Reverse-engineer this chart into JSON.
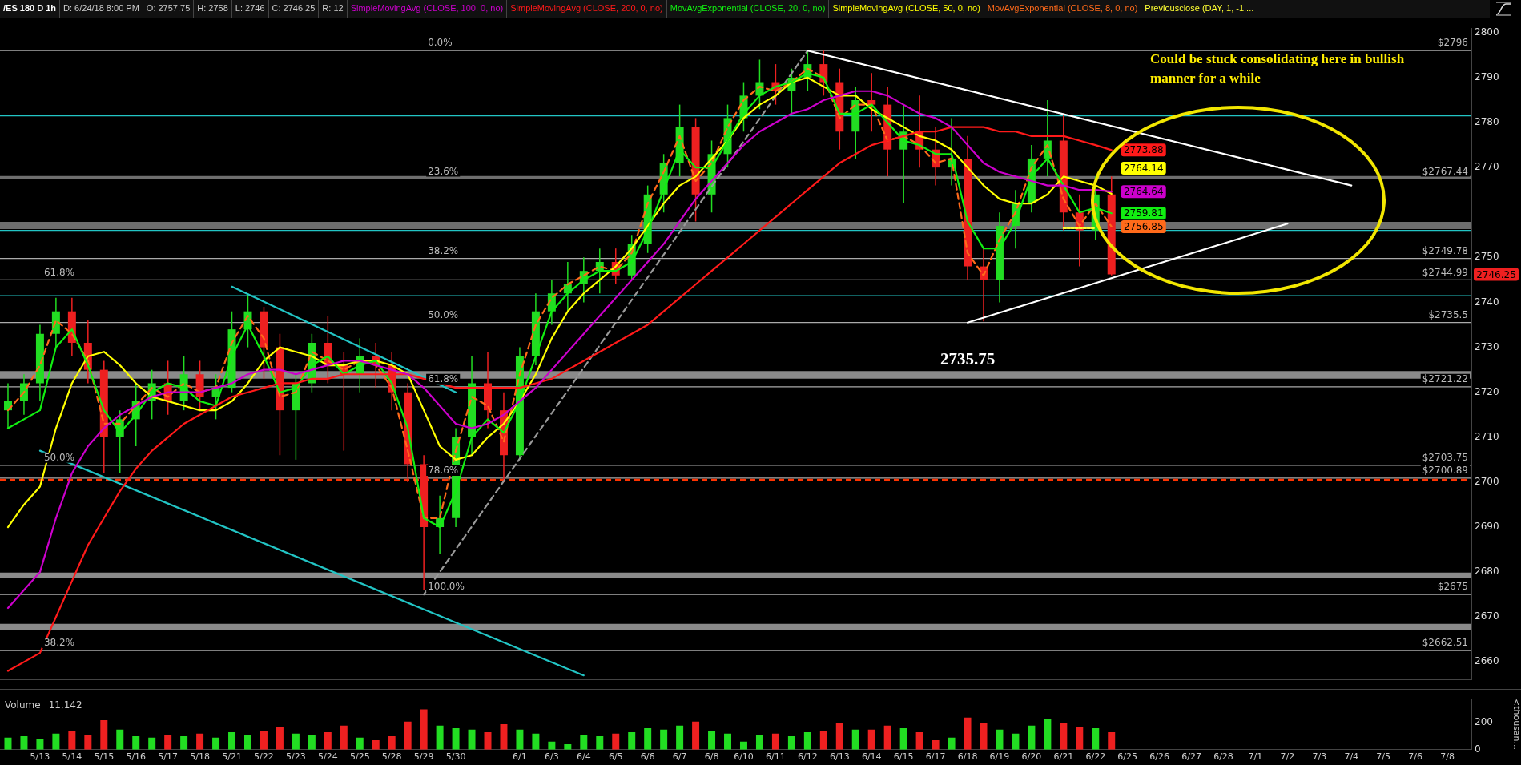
{
  "chart_data": [
    {
      "type": "candlestick",
      "title": "/ES 180 D 1h",
      "categories": [
        null,
        null,
        "5/13",
        null,
        "5/14",
        null,
        "5/15",
        null,
        "5/16",
        null,
        "5/17",
        null,
        "5/18",
        null,
        "5/21",
        null,
        "5/22",
        null,
        "5/23",
        null,
        "5/24",
        null,
        "5/25",
        null,
        "5/28",
        null,
        "5/29",
        null,
        "5/30",
        null,
        null,
        null,
        "6/1",
        null,
        "6/3",
        null,
        "6/4",
        null,
        "6/5",
        null,
        "6/6",
        null,
        "6/7",
        null,
        "6/8",
        null,
        "6/10",
        null,
        "6/11",
        null,
        "6/12",
        null,
        "6/13",
        null,
        "6/14",
        null,
        "6/15",
        null,
        "6/17",
        null,
        "6/18",
        null,
        "6/19",
        null,
        "6/20",
        null,
        "6/21",
        null,
        "6/22",
        null,
        "6/25",
        null,
        "6/26",
        null,
        "6/27",
        null,
        "6/28",
        null,
        "7/1",
        null,
        "7/2",
        null,
        "7/3",
        null,
        "7/4",
        null,
        "7/5",
        null,
        "7/6",
        null,
        "7/8",
        null
      ],
      "ohlc": [
        [
          2716,
          2722,
          2712,
          2718
        ],
        [
          2718,
          2724,
          2715,
          2722
        ],
        [
          2722,
          2735,
          2718,
          2733
        ],
        [
          2733,
          2741,
          2730,
          2738
        ],
        [
          2738,
          2741,
          2728,
          2731
        ],
        [
          2731,
          2736,
          2722,
          2725
        ],
        [
          2725,
          2727,
          2702,
          2710
        ],
        [
          2710,
          2716,
          2702,
          2714
        ],
        [
          2714,
          2722,
          2708,
          2718
        ],
        [
          2718,
          2725,
          2714,
          2722
        ],
        [
          2722,
          2727,
          2715,
          2718
        ],
        [
          2718,
          2728,
          2716,
          2724
        ],
        [
          2724,
          2727,
          2716,
          2719
        ],
        [
          2719,
          2724,
          2714,
          2721
        ],
        [
          2721,
          2738,
          2720,
          2734
        ],
        [
          2734,
          2742,
          2730,
          2738
        ],
        [
          2738,
          2739,
          2723,
          2730
        ],
        [
          2730,
          2733,
          2706,
          2716
        ],
        [
          2716,
          2724,
          2705,
          2722
        ],
        [
          2722,
          2733,
          2720,
          2731
        ],
        [
          2731,
          2737,
          2722,
          2726
        ],
        [
          2726,
          2729,
          2707,
          2724
        ],
        [
          2724,
          2732,
          2720,
          2728
        ],
        [
          2728,
          2731,
          2721,
          2726
        ],
        [
          2726,
          2729,
          2716,
          2720
        ],
        [
          2720,
          2722,
          2700,
          2704
        ],
        [
          2704,
          2706,
          2676,
          2690
        ],
        [
          2690,
          2697,
          2684,
          2692
        ],
        [
          2692,
          2712,
          2690,
          2710
        ],
        [
          2710,
          2728,
          2706,
          2722
        ],
        [
          2722,
          2729,
          2712,
          2716
        ],
        [
          2716,
          2720,
          2700,
          2706
        ],
        [
          2706,
          2730,
          2705,
          2728
        ],
        [
          2728,
          2742,
          2726,
          2738
        ],
        [
          2738,
          2745,
          2735,
          2742
        ],
        [
          2742,
          2749,
          2738,
          2744
        ],
        [
          2744,
          2750,
          2740,
          2747
        ],
        [
          2747,
          2752,
          2742,
          2749
        ],
        [
          2749,
          2752,
          2744,
          2746
        ],
        [
          2746,
          2755,
          2745,
          2753
        ],
        [
          2753,
          2766,
          2751,
          2764
        ],
        [
          2764,
          2773,
          2760,
          2771
        ],
        [
          2771,
          2784,
          2768,
          2779
        ],
        [
          2779,
          2781,
          2758,
          2764
        ],
        [
          2764,
          2776,
          2760,
          2773
        ],
        [
          2773,
          2784,
          2770,
          2781
        ],
        [
          2781,
          2789,
          2778,
          2786
        ],
        [
          2786,
          2794,
          2783,
          2789
        ],
        [
          2789,
          2793,
          2784,
          2787
        ],
        [
          2787,
          2792,
          2782,
          2790
        ],
        [
          2790,
          2796,
          2787,
          2793
        ],
        [
          2793,
          2796,
          2786,
          2789
        ],
        [
          2789,
          2792,
          2774,
          2778
        ],
        [
          2778,
          2788,
          2772,
          2785
        ],
        [
          2785,
          2791,
          2778,
          2784
        ],
        [
          2784,
          2788,
          2768,
          2774
        ],
        [
          2774,
          2784,
          2762,
          2778
        ],
        [
          2778,
          2786,
          2770,
          2774
        ],
        [
          2774,
          2779,
          2766,
          2770
        ],
        [
          2770,
          2781,
          2766,
          2772
        ],
        [
          2772,
          2777,
          2745,
          2748
        ],
        [
          2748,
          2752,
          2735.75,
          2745
        ],
        [
          2745,
          2760,
          2740,
          2757
        ],
        [
          2757,
          2765,
          2752,
          2762
        ],
        [
          2762,
          2775,
          2760,
          2772
        ],
        [
          2772,
          2785,
          2768,
          2776
        ],
        [
          2776,
          2782,
          2756,
          2760
        ],
        [
          2760,
          2764,
          2748,
          2756
        ],
        [
          2756,
          2768,
          2754,
          2764
        ],
        [
          2764,
          2768,
          2746,
          2746.25
        ],
        null,
        null,
        null,
        null,
        null,
        null,
        null,
        null,
        null,
        null,
        null,
        null,
        null,
        null,
        null,
        null,
        null,
        null,
        null,
        null,
        null,
        null
      ],
      "colors": [
        "#22dd22",
        "#22dd22",
        "#22dd22",
        "#22dd22",
        "#ee2020",
        "#ee2020",
        "#ee2020",
        "#22dd22",
        "#22dd22",
        "#22dd22",
        "#ee2020",
        "#22dd22",
        "#ee2020",
        "#22dd22",
        "#22dd22",
        "#22dd22",
        "#ee2020",
        "#ee2020",
        "#22dd22",
        "#22dd22",
        "#ee2020",
        "#ee2020",
        "#22dd22",
        "#ee2020",
        "#ee2020",
        "#ee2020",
        "#ee2020",
        "#22dd22",
        "#22dd22",
        "#22dd22",
        "#ee2020",
        "#ee2020",
        "#22dd22",
        "#22dd22",
        "#22dd22",
        "#22dd22",
        "#22dd22",
        "#22dd22",
        "#ee2020",
        "#22dd22",
        "#22dd22",
        "#22dd22",
        "#22dd22",
        "#ee2020",
        "#22dd22",
        "#22dd22",
        "#22dd22",
        "#22dd22",
        "#ee2020",
        "#22dd22",
        "#22dd22",
        "#ee2020",
        "#ee2020",
        "#22dd22",
        "#ee2020",
        "#ee2020",
        "#22dd22",
        "#ee2020",
        "#ee2020",
        "#22dd22",
        "#ee2020",
        "#ee2020",
        "#22dd22",
        "#22dd22",
        "#22dd22",
        "#22dd22",
        "#ee2020",
        "#ee2020",
        "#22dd22",
        "#ee2020",
        null,
        null,
        null,
        null,
        null,
        null,
        null,
        null,
        null,
        null,
        null,
        null,
        null,
        null,
        null,
        null,
        null,
        null,
        null,
        null,
        null,
        null
      ],
      "series": [
        {
          "name": "SimpleMovingAvg (CLOSE, 100, 0, no)",
          "type": "line",
          "color": "#cc00cc",
          "values": [
            2672,
            2676,
            2680,
            2692,
            2702,
            2708,
            2712,
            2715,
            2717,
            2719,
            2720,
            2720,
            2720,
            2721,
            2722,
            2724,
            2725,
            2725,
            2724,
            2725,
            2726,
            2727,
            2727,
            2726,
            2725,
            2724,
            2721,
            2717,
            2713,
            2712,
            2713,
            2715,
            2718,
            2721,
            2725,
            2729,
            2733,
            2737,
            2741,
            2745,
            2749,
            2753,
            2758,
            2763,
            2767,
            2771,
            2775,
            2778,
            2780,
            2782,
            2783,
            2785,
            2786,
            2787,
            2787,
            2786,
            2784,
            2782,
            2781,
            2779,
            2775,
            2771,
            2769,
            2768,
            2767,
            2766,
            2766,
            2765,
            2765,
            2764.64,
            null,
            null,
            null,
            null,
            null,
            null,
            null,
            null,
            null,
            null,
            null,
            null,
            null,
            null,
            null,
            null,
            null,
            null,
            null,
            null,
            null,
            null
          ],
          "value_labels": [
            null,
            null,
            null,
            null,
            null,
            null,
            null,
            null,
            null,
            null,
            null,
            null,
            null,
            null,
            null,
            null,
            null,
            null,
            null,
            null,
            null,
            null,
            null,
            null,
            null,
            null,
            null,
            null,
            null,
            null,
            null,
            null,
            null,
            null,
            null,
            null,
            null,
            null,
            null,
            null,
            null,
            null,
            null,
            null,
            null,
            null,
            null,
            null,
            null,
            null,
            null,
            null,
            null,
            null,
            null,
            null,
            null,
            null,
            null,
            null,
            null,
            null,
            null,
            null,
            null,
            null,
            null,
            null,
            null,
            "2764.64",
            null,
            null,
            null,
            null,
            null,
            null,
            null,
            null,
            null,
            null,
            null,
            null,
            null,
            null,
            null,
            null,
            null,
            null,
            null,
            null,
            null,
            null
          ]
        },
        {
          "name": "SimpleMovingAvg (CLOSE, 200, 0, no)",
          "type": "line",
          "color": "#ff1a1a",
          "values": [
            2658,
            2660,
            2662,
            2670,
            2678,
            2686,
            2692,
            2698,
            2703,
            2707,
            2710,
            2713,
            2715,
            2717,
            2719,
            2720,
            2721,
            2722,
            2722,
            2723,
            2723,
            2724,
            2724,
            2724,
            2724,
            2724,
            2723,
            2722,
            2721,
            2721,
            2721,
            2721,
            2721,
            2722,
            2723,
            2725,
            2727,
            2729,
            2731,
            2733,
            2735,
            2738,
            2741,
            2744,
            2747,
            2750,
            2753,
            2756,
            2759,
            2762,
            2765,
            2768,
            2771,
            2773,
            2775,
            2776,
            2777,
            2778,
            2778,
            2779,
            2779,
            2779,
            2778,
            2778,
            2777,
            2777,
            2777,
            2776,
            2775,
            2773.88,
            null,
            null,
            null,
            null,
            null,
            null,
            null,
            null,
            null,
            null,
            null,
            null,
            null,
            null,
            null,
            null,
            null,
            null,
            null,
            null,
            null,
            null
          ],
          "value_labels": [
            null,
            null,
            null,
            null,
            null,
            null,
            null,
            null,
            null,
            null,
            null,
            null,
            null,
            null,
            null,
            null,
            null,
            null,
            null,
            null,
            null,
            null,
            null,
            null,
            null,
            null,
            null,
            null,
            null,
            null,
            null,
            null,
            null,
            null,
            null,
            null,
            null,
            null,
            null,
            null,
            null,
            null,
            null,
            null,
            null,
            null,
            null,
            null,
            null,
            null,
            null,
            null,
            null,
            null,
            null,
            null,
            null,
            null,
            null,
            null,
            null,
            null,
            null,
            null,
            null,
            null,
            null,
            null,
            null,
            "2773.88",
            null,
            null,
            null,
            null,
            null,
            null,
            null,
            null,
            null,
            null,
            null,
            null,
            null,
            null,
            null,
            null,
            null,
            null,
            null,
            null,
            null,
            null
          ]
        },
        {
          "name": "MovAvgExponential (CLOSE, 20, 0, no)",
          "type": "line",
          "color": "#11ee11",
          "values": [
            2712,
            2714,
            2716,
            2730,
            2734,
            2726,
            2716,
            2711,
            2715,
            2720,
            2722,
            2721,
            2718,
            2717,
            2728,
            2735,
            2728,
            2720,
            2721,
            2726,
            2728,
            2724,
            2726,
            2727,
            2722,
            2712,
            2692,
            2690,
            2698,
            2710,
            2714,
            2711,
            2718,
            2728,
            2738,
            2742,
            2745,
            2747,
            2747,
            2749,
            2756,
            2765,
            2774,
            2770,
            2770,
            2776,
            2782,
            2786,
            2788,
            2789,
            2791,
            2790,
            2782,
            2782,
            2784,
            2780,
            2776,
            2775,
            2773,
            2773,
            2758,
            2752,
            2752,
            2758,
            2768,
            2772,
            2766,
            2760,
            2761,
            2759.81,
            null,
            null,
            null,
            null,
            null,
            null,
            null,
            null,
            null,
            null,
            null,
            null,
            null,
            null,
            null,
            null,
            null,
            null,
            null,
            null,
            null,
            null
          ],
          "value_labels": [
            null,
            null,
            null,
            null,
            null,
            null,
            null,
            null,
            null,
            null,
            null,
            null,
            null,
            null,
            null,
            null,
            null,
            null,
            null,
            null,
            null,
            null,
            null,
            null,
            null,
            null,
            null,
            null,
            null,
            null,
            null,
            null,
            null,
            null,
            null,
            null,
            null,
            null,
            null,
            null,
            null,
            null,
            null,
            null,
            null,
            null,
            null,
            null,
            null,
            null,
            null,
            null,
            null,
            null,
            null,
            null,
            null,
            null,
            null,
            null,
            null,
            null,
            null,
            null,
            null,
            null,
            null,
            null,
            null,
            "2759.81",
            null,
            null,
            null,
            null,
            null,
            null,
            null,
            null,
            null,
            null,
            null,
            null,
            null,
            null,
            null,
            null,
            null,
            null,
            null,
            null,
            null,
            null
          ]
        },
        {
          "name": "SimpleMovingAvg (CLOSE, 50, 0, no)",
          "type": "line",
          "color": "#ffff00",
          "values": [
            2690,
            2695,
            2699,
            2712,
            2722,
            2728,
            2729,
            2726,
            2722,
            2719,
            2718,
            2717,
            2716,
            2716,
            2718,
            2722,
            2727,
            2730,
            2729,
            2728,
            2726,
            2726,
            2727,
            2727,
            2726,
            2724,
            2716,
            2708,
            2705,
            2706,
            2710,
            2713,
            2718,
            2724,
            2732,
            2738,
            2742,
            2745,
            2748,
            2752,
            2757,
            2762,
            2766,
            2768,
            2772,
            2776,
            2781,
            2784,
            2786,
            2789,
            2790,
            2788,
            2786,
            2786,
            2783,
            2781,
            2779,
            2777,
            2776,
            2774,
            2770,
            2766,
            2763,
            2762,
            2762,
            2764,
            2768,
            2767,
            2766,
            2764.14,
            null,
            null,
            null,
            null,
            null,
            null,
            null,
            null,
            null,
            null,
            null,
            null,
            null,
            null,
            null,
            null,
            null,
            null,
            null,
            null,
            null,
            null
          ],
          "value_labels": [
            null,
            null,
            null,
            null,
            null,
            null,
            null,
            null,
            null,
            null,
            null,
            null,
            null,
            null,
            null,
            null,
            null,
            null,
            null,
            null,
            null,
            null,
            null,
            null,
            null,
            null,
            null,
            null,
            null,
            null,
            null,
            null,
            null,
            null,
            null,
            null,
            null,
            null,
            null,
            null,
            null,
            null,
            null,
            null,
            null,
            null,
            null,
            null,
            null,
            null,
            null,
            null,
            null,
            null,
            null,
            null,
            null,
            null,
            null,
            null,
            null,
            null,
            null,
            null,
            null,
            null,
            null,
            null,
            null,
            "2764.14",
            null,
            null,
            null,
            null,
            null,
            null,
            null,
            null,
            null,
            null,
            null,
            null,
            null,
            null,
            null,
            null,
            null,
            null,
            null,
            null,
            null,
            null
          ]
        },
        {
          "name": "MovAvgExponential (CLOSE, 8, 0, no)",
          "type": "line",
          "color": "#ff6a1a",
          "line_style": "dashed",
          "values": [
            2716,
            2720,
            2726,
            2736,
            2733,
            2727,
            2713,
            2713,
            2717,
            2721,
            2719,
            2722,
            2720,
            2721,
            2731,
            2737,
            2732,
            2719,
            2720,
            2729,
            2727,
            2725,
            2727,
            2726,
            2721,
            2707,
            2692,
            2692,
            2707,
            2719,
            2717,
            2709,
            2724,
            2735,
            2741,
            2744,
            2746,
            2748,
            2747,
            2751,
            2762,
            2769,
            2777,
            2767,
            2771,
            2779,
            2785,
            2788,
            2787,
            2789,
            2792,
            2790,
            2781,
            2784,
            2784,
            2776,
            2777,
            2775,
            2771,
            2772,
            2751,
            2746,
            2754,
            2760,
            2770,
            2775,
            2763,
            2757,
            2762,
            2756.85,
            null,
            null,
            null,
            null,
            null,
            null,
            null,
            null,
            null,
            null,
            null,
            null,
            null,
            null,
            null,
            null,
            null,
            null,
            null,
            null,
            null,
            null
          ],
          "value_labels": [
            null,
            null,
            null,
            null,
            null,
            null,
            null,
            null,
            null,
            null,
            null,
            null,
            null,
            null,
            null,
            null,
            null,
            null,
            null,
            null,
            null,
            null,
            null,
            null,
            null,
            null,
            null,
            null,
            null,
            null,
            null,
            null,
            null,
            null,
            null,
            null,
            null,
            null,
            null,
            null,
            null,
            null,
            null,
            null,
            null,
            null,
            null,
            null,
            null,
            null,
            null,
            null,
            null,
            null,
            null,
            null,
            null,
            null,
            null,
            null,
            null,
            null,
            null,
            null,
            null,
            null,
            null,
            null,
            null,
            "2756.85",
            null,
            null,
            null,
            null,
            null,
            null,
            null,
            null,
            null,
            null,
            null,
            null,
            null,
            null,
            null,
            null,
            null,
            null,
            null,
            null,
            null,
            null
          ]
        },
        {
          "name": "Previousclose (DAY, 1, -1,...",
          "type": "line",
          "color": "#ffff33",
          "line_style": "dotted",
          "x": [
            "6/21",
            "6/22"
          ],
          "values": [
            2756.5,
            2756.5
          ]
        },
        {
          "type": "line",
          "color": "#ffffff",
          "x": [
            "6/12",
            "7/4"
          ],
          "values": [
            2796,
            2766
          ]
        },
        {
          "type": "line",
          "color": "#ffffff",
          "x": [
            "6/18",
            "7/2"
          ],
          "values": [
            2735.5,
            2757.5
          ]
        },
        {
          "type": "line",
          "color": "#22c4c4",
          "x": [
            "5/21",
            "5/30"
          ],
          "values": [
            2743.5,
            2720
          ]
        },
        {
          "type": "line",
          "color": "#22c4c4",
          "x": [
            "5/13",
            "6/4"
          ],
          "values": [
            2707,
            2657
          ]
        },
        {
          "type": "line",
          "color": "#999999",
          "line_style": "dashed",
          "x": [
            "5/29",
            "6/12"
          ],
          "values": [
            2675,
            2796
          ]
        }
      ],
      "ref_lines": [
        {
          "axis": "y",
          "value": 2796,
          "label": "$2796",
          "color": "#aaaaaa"
        },
        {
          "axis": "y",
          "value": 2767.44,
          "label": "$2767.44",
          "color": "#aaaaaa"
        },
        {
          "axis": "y",
          "value": 2749.78,
          "label": "$2749.78",
          "color": "#aaaaaa"
        },
        {
          "axis": "y",
          "value": 2744.99,
          "label": "$2744.99",
          "color": "#aaaaaa"
        },
        {
          "axis": "y",
          "value": 2735.5,
          "label": "$2735.5",
          "color": "#aaaaaa"
        },
        {
          "axis": "y",
          "value": 2721.22,
          "label": "$2721.22",
          "color": "#aaaaaa"
        },
        {
          "axis": "y",
          "value": 2703.75,
          "label": "$2703.75",
          "color": "#aaaaaa"
        },
        {
          "axis": "y",
          "value": 2700.89,
          "label": "$2700.89",
          "color": "#aaaaaa"
        },
        {
          "axis": "y",
          "value": 2675,
          "label": "$2675",
          "color": "#aaaaaa"
        },
        {
          "axis": "y",
          "value": 2662.51,
          "label": "$2662.51",
          "color": "#aaaaaa"
        },
        {
          "axis": "y",
          "value": 2781.5,
          "color": "#22c4c4"
        },
        {
          "axis": "y",
          "value": 2756,
          "color": "#22c4c4"
        },
        {
          "axis": "y",
          "value": 2741.5,
          "color": "#22c4c4"
        },
        {
          "axis": "y",
          "value": 2700.5,
          "color": "#ff3300",
          "line_style": "dashed"
        }
      ],
      "bands": [
        {
          "axis": "y",
          "from": 2723,
          "to": 2724.7,
          "color": "#8a8a8a"
        },
        {
          "axis": "y",
          "from": 2678.6,
          "to": 2679.9,
          "color": "#8a8a8a"
        },
        {
          "axis": "y",
          "from": 2667.2,
          "to": 2668.5,
          "color": "#8a8a8a"
        },
        {
          "axis": "y",
          "from": 2756.3,
          "to": 2757.9,
          "color": "#6e6e6e"
        },
        {
          "axis": "y",
          "from": 2767.5,
          "to": 2768.1,
          "color": "#6e6e6e"
        }
      ],
      "annotations": [
        "D: 6/24/18 8:00 PM",
        "O: 2757.75",
        "H: 2758",
        "L: 2746",
        "C: 2746.25",
        "R: 12",
        {
          "text": "0.0%",
          "x": "5/29",
          "y": 2796
        },
        {
          "text": "23.6%",
          "x": "5/29",
          "y": 2767.44
        },
        {
          "text": "38.2%",
          "x": "5/29",
          "y": 2749.78
        },
        {
          "text": "50.0%",
          "x": "5/29",
          "y": 2735.5
        },
        {
          "text": "61.8%",
          "x": "5/29",
          "y": 2721.22
        },
        {
          "text": "78.6%",
          "x": "5/29",
          "y": 2700.89
        },
        {
          "text": "100.0%",
          "x": "5/29",
          "y": 2675
        },
        {
          "text": "61.8%",
          "x": "5/13",
          "y": 2744.99
        },
        {
          "text": "50.0%",
          "x": "5/13",
          "y": 2703.75
        },
        {
          "text": "38.2%",
          "x": "5/13",
          "y": 2662.51
        },
        {
          "text": "2735.75",
          "x": "6/18",
          "y": 2735.75
        },
        "2746.25",
        "Could be stuck consolidating here in bullish manner for a while"
      ],
      "ylim": [
        2656,
        2801
      ],
      "yticks": [
        2660,
        2670,
        2680,
        2690,
        2700,
        2710,
        2720,
        2730,
        2740,
        2750,
        2770,
        2780,
        2790,
        2800
      ],
      "tick_labels": "y",
      "grid": false,
      "legend": "top",
      "marker": "none"
    },
    {
      "type": "bar",
      "title": "Volume",
      "categories": [
        null,
        null,
        "5/13",
        null,
        "5/14",
        null,
        "5/15",
        null,
        "5/16",
        null,
        "5/17",
        null,
        "5/18",
        null,
        "5/21",
        null,
        "5/22",
        null,
        "5/23",
        null,
        "5/24",
        null,
        "5/25",
        null,
        "5/28",
        null,
        "5/29",
        null,
        "5/30",
        null,
        null,
        null,
        "6/1",
        null,
        "6/3",
        null,
        "6/4",
        null,
        "6/5",
        null,
        "6/6",
        null,
        "6/7",
        null,
        "6/8",
        null,
        "6/10",
        null,
        "6/11",
        null,
        "6/12",
        null,
        "6/13",
        null,
        "6/14",
        null,
        "6/15",
        null,
        "6/17",
        null,
        "6/18",
        null,
        "6/19",
        null,
        "6/20",
        null,
        "6/21",
        null,
        "6/22",
        null,
        "6/25",
        null,
        "6/26",
        null,
        "6/27",
        null,
        "6/28",
        null,
        "7/1",
        null,
        "7/2",
        null,
        "7/3",
        null,
        "7/4",
        null,
        "7/5",
        null,
        "7/6",
        null,
        "7/8",
        null
      ],
      "values": [
        90,
        100,
        80,
        120,
        140,
        110,
        220,
        150,
        100,
        90,
        110,
        100,
        120,
        90,
        130,
        110,
        140,
        170,
        120,
        110,
        130,
        180,
        90,
        70,
        100,
        210,
        300,
        180,
        160,
        150,
        130,
        190,
        150,
        120,
        60,
        40,
        110,
        100,
        120,
        130,
        160,
        150,
        180,
        210,
        140,
        120,
        60,
        110,
        120,
        100,
        130,
        140,
        200,
        150,
        150,
        180,
        160,
        130,
        70,
        90,
        240,
        200,
        150,
        120,
        180,
        230,
        200,
        170,
        160,
        130,
        null,
        null,
        null,
        null,
        null,
        null,
        null,
        null,
        null,
        null,
        null,
        null,
        null,
        null,
        null,
        null,
        null,
        null,
        null,
        null,
        null,
        null
      ],
      "colors": [
        "#22dd22",
        "#22dd22",
        "#22dd22",
        "#22dd22",
        "#ee2020",
        "#ee2020",
        "#ee2020",
        "#22dd22",
        "#22dd22",
        "#22dd22",
        "#ee2020",
        "#22dd22",
        "#ee2020",
        "#22dd22",
        "#22dd22",
        "#22dd22",
        "#ee2020",
        "#ee2020",
        "#22dd22",
        "#22dd22",
        "#ee2020",
        "#ee2020",
        "#22dd22",
        "#ee2020",
        "#ee2020",
        "#ee2020",
        "#ee2020",
        "#22dd22",
        "#22dd22",
        "#22dd22",
        "#ee2020",
        "#ee2020",
        "#22dd22",
        "#22dd22",
        "#22dd22",
        "#22dd22",
        "#22dd22",
        "#22dd22",
        "#ee2020",
        "#22dd22",
        "#22dd22",
        "#22dd22",
        "#22dd22",
        "#ee2020",
        "#22dd22",
        "#22dd22",
        "#22dd22",
        "#22dd22",
        "#ee2020",
        "#22dd22",
        "#22dd22",
        "#ee2020",
        "#ee2020",
        "#22dd22",
        "#ee2020",
        "#ee2020",
        "#22dd22",
        "#ee2020",
        "#ee2020",
        "#22dd22",
        "#ee2020",
        "#ee2020",
        "#22dd22",
        "#22dd22",
        "#22dd22",
        "#22dd22",
        "#ee2020",
        "#ee2020",
        "#22dd22",
        "#ee2020",
        null,
        null,
        null,
        null,
        null,
        null,
        null,
        null,
        null,
        null,
        null,
        null,
        null,
        null,
        null,
        null,
        null,
        null,
        null,
        null,
        null,
        null
      ],
      "ylabel": "<thousan...",
      "ylim": [
        0,
        380
      ],
      "yticks": [
        0,
        200
      ],
      "grid": false,
      "annotations": [
        "11,142"
      ]
    }
  ]
}
